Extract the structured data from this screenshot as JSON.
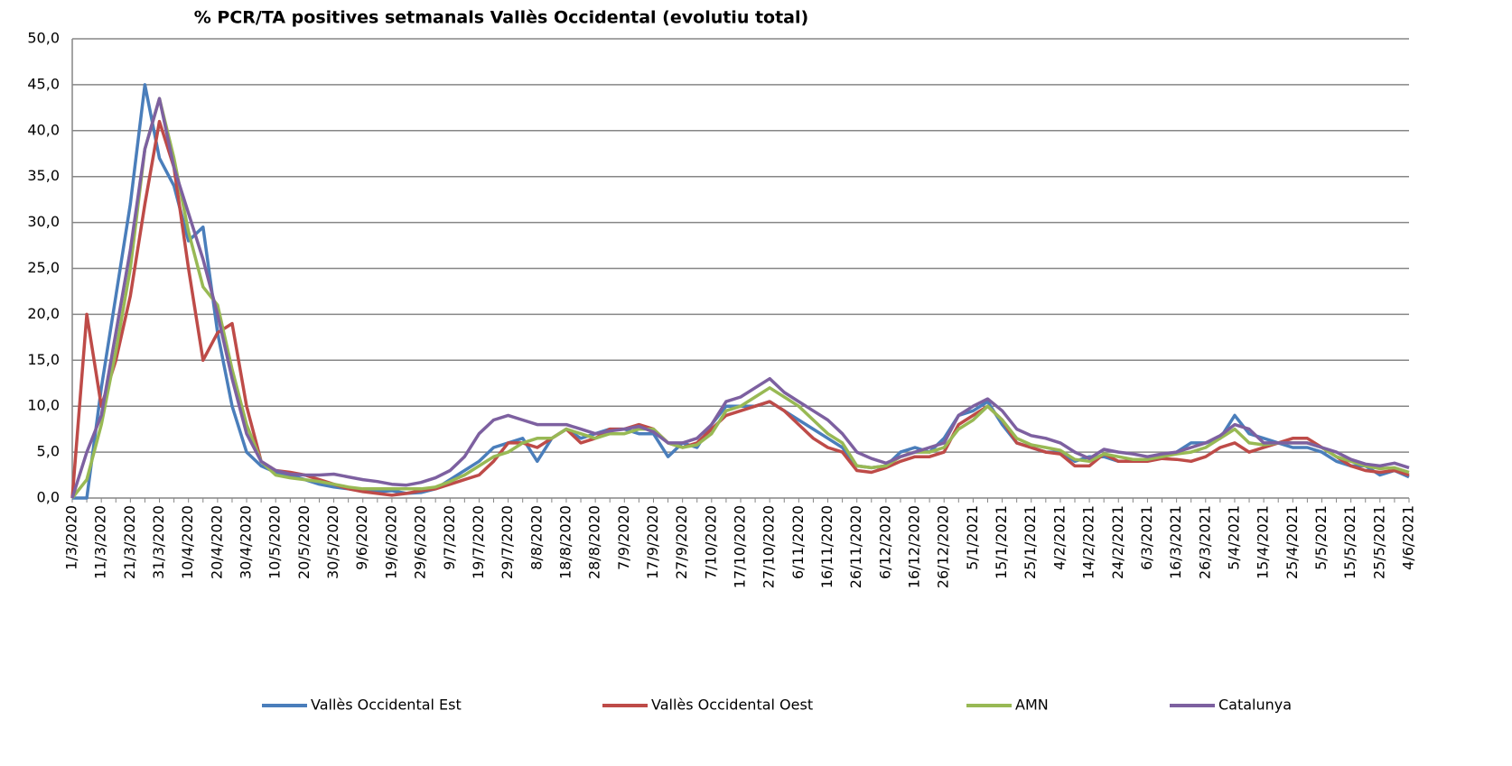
{
  "chart_data": {
    "type": "line",
    "title": "% PCR/TA positives setmanals Vallès Occidental (evolutiu total)",
    "categories": [
      "1/3/2020",
      null,
      "11/3/2020",
      null,
      "21/3/2020",
      null,
      "31/3/2020",
      null,
      "10/4/2020",
      null,
      "20/4/2020",
      null,
      "30/4/2020",
      null,
      "10/5/2020",
      null,
      "20/5/2020",
      null,
      "30/5/2020",
      null,
      "9/6/2020",
      null,
      "19/6/2020",
      null,
      "29/6/2020",
      null,
      "9/7/2020",
      null,
      "19/7/2020",
      null,
      "29/7/2020",
      null,
      "8/8/2020",
      null,
      "18/8/2020",
      null,
      "28/8/2020",
      null,
      "7/9/2020",
      null,
      "17/9/2020",
      null,
      "27/9/2020",
      null,
      "7/10/2020",
      null,
      "17/10/2020",
      null,
      "27/10/2020",
      null,
      "6/11/2020",
      null,
      "16/11/2020",
      null,
      "26/11/2020",
      null,
      "6/12/2020",
      null,
      "16/12/2020",
      null,
      "26/12/2020",
      null,
      "5/1/2021",
      null,
      "15/1/2021",
      null,
      "25/1/2021",
      null,
      "4/2/2021",
      null,
      "14/2/2021",
      null,
      "24/2/2021",
      null,
      "6/3/2021",
      null,
      "16/3/2021",
      null,
      "26/3/2021",
      null,
      "5/4/2021",
      null,
      "15/4/2021",
      null,
      "25/4/2021",
      null,
      "5/5/2021",
      null,
      "15/5/2021",
      null,
      "25/5/2021",
      null,
      "4/6/2021"
    ],
    "series": [
      {
        "name": "Vallès Occidental Est",
        "color": "#4a7ebb",
        "values": [
          0,
          0,
          12,
          22,
          32,
          45,
          37,
          34,
          28,
          29.5,
          18,
          10,
          5,
          3.5,
          2.8,
          2.5,
          2,
          1.5,
          1.2,
          1,
          0.8,
          0.7,
          0.8,
          0.5,
          0.6,
          1,
          2,
          3,
          4,
          5.5,
          6,
          6.5,
          4,
          6.5,
          7.5,
          6.5,
          7,
          7.5,
          7.5,
          7,
          7,
          4.5,
          6,
          5.5,
          8,
          10,
          10,
          10,
          10.5,
          9.5,
          8.5,
          7.5,
          6.5,
          5.5,
          3.5,
          3.3,
          3.5,
          5,
          5.5,
          5,
          6.5,
          9,
          9.5,
          10.5,
          8,
          6,
          5.5,
          5,
          5,
          4,
          4.5,
          4.5,
          4,
          4,
          4.2,
          4.5,
          5,
          6,
          6,
          6.5,
          9,
          7,
          6.5,
          6,
          5.5,
          5.5,
          5,
          4,
          3.5,
          3.5,
          2.5,
          3,
          2.3
        ]
      },
      {
        "name": "Vallès Occidental Oest",
        "color": "#be4b48",
        "values": [
          0,
          20,
          10,
          15,
          22,
          32,
          41,
          36,
          25,
          15,
          18,
          19,
          10,
          4,
          3,
          2.8,
          2.5,
          2,
          1.5,
          1,
          0.7,
          0.5,
          0.3,
          0.5,
          0.8,
          1,
          1.5,
          2,
          2.5,
          4,
          6,
          6,
          5.5,
          6.5,
          7.5,
          6,
          6.5,
          7.5,
          7.5,
          8,
          7.5,
          6,
          5.5,
          6,
          7.5,
          9,
          9.5,
          10,
          10.5,
          9.5,
          8,
          6.5,
          5.5,
          5,
          3,
          2.8,
          3.3,
          4,
          4.5,
          4.5,
          5,
          8,
          9,
          10,
          8.5,
          6,
          5.5,
          5,
          4.8,
          3.5,
          3.5,
          4.8,
          4,
          4,
          4,
          4.3,
          4.2,
          4,
          4.5,
          5.5,
          6,
          5,
          5.5,
          6,
          6.5,
          6.5,
          5.5,
          4.5,
          3.5,
          3,
          2.8,
          3,
          2.5
        ]
      },
      {
        "name": "AMN",
        "color": "#98b954",
        "values": [
          0,
          2,
          8,
          16,
          25,
          38,
          43.5,
          37,
          29,
          23,
          21,
          14,
          8,
          4,
          2.5,
          2.2,
          2,
          1.8,
          1.5,
          1.2,
          1,
          1,
          1,
          1,
          1,
          1.2,
          1.8,
          2.5,
          3.5,
          4.5,
          5,
          6,
          6.5,
          6.5,
          7.5,
          7,
          6.5,
          7,
          7,
          7.5,
          7.5,
          6,
          5.5,
          5.8,
          7,
          9.5,
          10,
          11,
          12,
          11,
          10,
          8.5,
          7,
          6,
          3.5,
          3.3,
          3.5,
          4.5,
          5,
          5,
          5.5,
          7.5,
          8.5,
          10,
          8.5,
          6.5,
          5.8,
          5.5,
          5.2,
          4.2,
          4,
          4.8,
          4.5,
          4.2,
          4.2,
          4.5,
          4.8,
          5,
          5.5,
          6.5,
          7.5,
          6,
          5.8,
          6,
          6,
          6,
          5.5,
          4.5,
          4,
          3.5,
          3.2,
          3.3,
          2.8
        ]
      },
      {
        "name": "Catalunya",
        "color": "#7d60a0",
        "values": [
          0,
          5,
          9,
          18,
          27,
          38,
          43.5,
          36,
          31,
          26,
          20,
          13,
          7,
          4,
          3,
          2.6,
          2.5,
          2.5,
          2.6,
          2.3,
          2,
          1.8,
          1.5,
          1.4,
          1.7,
          2.2,
          3,
          4.5,
          7,
          8.5,
          9,
          8.5,
          8,
          8,
          8,
          7.5,
          7,
          7.3,
          7.5,
          7.8,
          7.2,
          6,
          6,
          6.5,
          8,
          10.5,
          11,
          12,
          13,
          11.5,
          10.5,
          9.5,
          8.5,
          7,
          5,
          4.3,
          3.8,
          4.5,
          5,
          5.5,
          6,
          9,
          10,
          10.8,
          9.5,
          7.5,
          6.8,
          6.5,
          6,
          5,
          4.3,
          5.3,
          5,
          4.8,
          4.5,
          4.8,
          5,
          5.5,
          6,
          6.8,
          8,
          7.5,
          6,
          6,
          6,
          6,
          5.5,
          5,
          4.2,
          3.7,
          3.5,
          3.8,
          3.3
        ]
      }
    ],
    "ylim": [
      0,
      50
    ],
    "yticks": [
      {
        "value": 0,
        "label": "0,0"
      },
      {
        "value": 5,
        "label": "5,0"
      },
      {
        "value": 10,
        "label": "10,0"
      },
      {
        "value": 15,
        "label": "15,0"
      },
      {
        "value": 20,
        "label": "20,0"
      },
      {
        "value": 25,
        "label": "25,0"
      },
      {
        "value": 30,
        "label": "30,0"
      },
      {
        "value": 35,
        "label": "35,0"
      },
      {
        "value": 40,
        "label": "40,0"
      },
      {
        "value": 45,
        "label": "45,0"
      },
      {
        "value": 50,
        "label": "50,0"
      }
    ],
    "grid": true,
    "legend": "bottom"
  }
}
